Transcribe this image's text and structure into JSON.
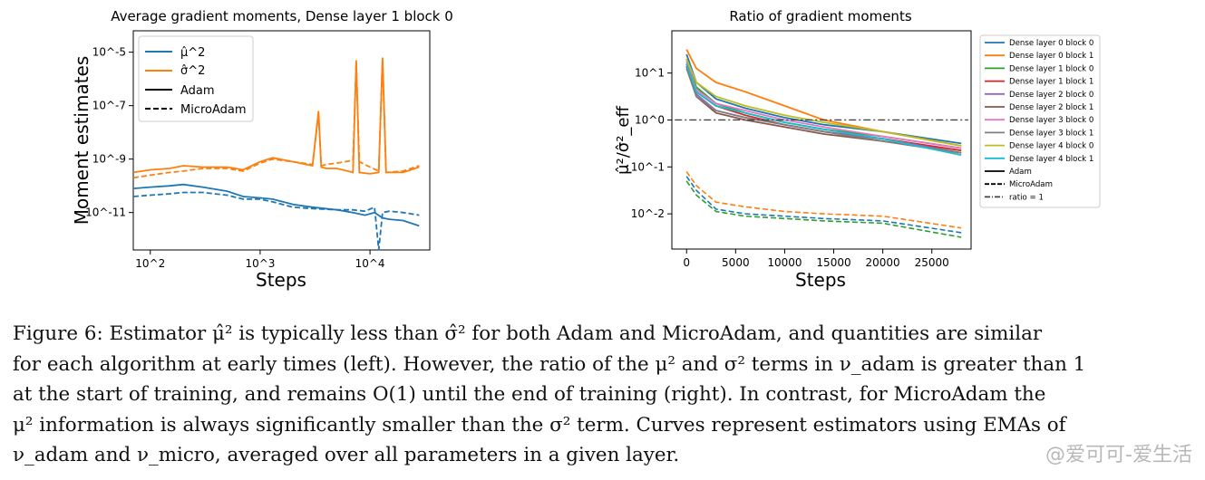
{
  "colors": {
    "c0": "#1f77b4",
    "c1": "#ff7f0e",
    "c2": "#2ca02c",
    "c3": "#d62728",
    "c4": "#9467bd",
    "c5": "#8c564b",
    "c6": "#e377c2",
    "c7": "#7f7f7f",
    "c8": "#bcbd22",
    "c9": "#17becf"
  },
  "chart_data": [
    {
      "type": "line",
      "title": "Average gradient moments, Dense layer 1 block 0",
      "xlabel": "Steps",
      "ylabel": "Moment estimates",
      "xscale": "log",
      "yscale": "log",
      "xlim": [
        70,
        35000
      ],
      "ylim_log10": [
        -12.4,
        -4.2
      ],
      "xticks": [
        "10^2",
        "10^3",
        "10^4"
      ],
      "yticks": [
        "10^-5",
        "10^-7",
        "10^-9",
        "10^-11"
      ],
      "legend": [
        "μ̂^2",
        "σ̂^2",
        "Adam",
        "MicroAdam"
      ],
      "legend_position": "upper left",
      "series": [
        {
          "name": "μ̂² Adam",
          "color": "c0",
          "style": "solid",
          "x": [
            70,
            100,
            150,
            200,
            300,
            500,
            700,
            1000,
            1300,
            2000,
            3000,
            5000,
            7000,
            9000,
            11000,
            13000,
            15000,
            20000,
            28000
          ],
          "y_log10": [
            -10.1,
            -10.05,
            -10.0,
            -9.95,
            -10.05,
            -10.2,
            -10.4,
            -10.45,
            -10.5,
            -10.7,
            -10.8,
            -10.9,
            -11.0,
            -11.1,
            -11.0,
            -11.2,
            -11.25,
            -11.3,
            -11.5
          ]
        },
        {
          "name": "μ̂² MicroAdam",
          "color": "c0",
          "style": "dashed",
          "x": [
            70,
            100,
            150,
            200,
            300,
            500,
            700,
            1000,
            1300,
            2000,
            3000,
            5000,
            7000,
            9000,
            11000,
            12000,
            13000,
            15000,
            20000,
            28000
          ],
          "y_log10": [
            -10.4,
            -10.35,
            -10.3,
            -10.25,
            -10.25,
            -10.35,
            -10.5,
            -10.5,
            -10.6,
            -10.8,
            -10.85,
            -10.9,
            -10.9,
            -10.95,
            -10.8,
            -12.4,
            -11.0,
            -10.95,
            -11.0,
            -11.1
          ]
        },
        {
          "name": "σ̂² Adam",
          "color": "c1",
          "style": "solid",
          "x": [
            70,
            100,
            150,
            200,
            300,
            500,
            700,
            1000,
            1300,
            2000,
            3000,
            3400,
            3600,
            4000,
            5000,
            7000,
            7500,
            8000,
            10000,
            12000,
            13000,
            14000,
            20000,
            28000
          ],
          "y_log10": [
            -9.5,
            -9.4,
            -9.35,
            -9.25,
            -9.3,
            -9.3,
            -9.4,
            -9.1,
            -8.95,
            -9.1,
            -9.25,
            -7.2,
            -9.3,
            -9.35,
            -9.35,
            -9.5,
            -5.3,
            -9.5,
            -9.55,
            -9.5,
            -5.2,
            -9.5,
            -9.5,
            -9.3
          ]
        },
        {
          "name": "σ̂² MicroAdam",
          "color": "c1",
          "style": "dashed",
          "x": [
            70,
            100,
            150,
            200,
            300,
            500,
            700,
            1000,
            1300,
            2000,
            3000,
            3400,
            3600,
            4000,
            5000,
            7000,
            7500,
            8000,
            10000,
            12000,
            13000,
            14000,
            20000,
            28000
          ],
          "y_log10": [
            -9.7,
            -9.6,
            -9.5,
            -9.45,
            -9.35,
            -9.35,
            -9.45,
            -9.15,
            -9.0,
            -9.1,
            -9.2,
            -7.3,
            -9.25,
            -9.2,
            -9.15,
            -9.05,
            -5.4,
            -9.1,
            -9.3,
            -9.45,
            -5.3,
            -9.5,
            -9.45,
            -9.25
          ]
        }
      ]
    },
    {
      "type": "line",
      "title": "Ratio of gradient moments",
      "xlabel": "Steps",
      "ylabel": "μ̂²/σ̂²_eff",
      "yscale": "log",
      "xlim": [
        -1500,
        29000
      ],
      "ylim_log10": [
        -2.75,
        1.9
      ],
      "xticks": [
        0,
        5000,
        10000,
        15000,
        20000,
        25000
      ],
      "yticks": [
        "10^1",
        "10^0",
        "10^-1",
        "10^-2"
      ],
      "reference_line": {
        "label": "ratio = 1",
        "y": 1
      },
      "legend": [
        "Dense layer 0 block 0",
        "Dense layer 0 block 1",
        "Dense layer 1 block 0",
        "Dense layer 1 block 1",
        "Dense layer 2 block 0",
        "Dense layer 2 block 1",
        "Dense layer 3 block 0",
        "Dense layer 3 block 1",
        "Dense layer 4 block 0",
        "Dense layer 4 block 1",
        "Adam",
        "MicroAdam",
        "ratio = 1"
      ],
      "legend_position": "outside right",
      "adam_series": [
        {
          "name": "Dense layer 0 block 0",
          "x": [
            0,
            1000,
            3000,
            6000,
            10000,
            14000,
            20000,
            28000
          ],
          "y_log10": [
            1.4,
            0.8,
            0.45,
            0.25,
            0.05,
            -0.1,
            -0.25,
            -0.5
          ]
        },
        {
          "name": "Dense layer 0 block 1",
          "x": [
            0,
            1000,
            3000,
            6000,
            10000,
            14000,
            20000,
            28000
          ],
          "y_log10": [
            1.5,
            1.1,
            0.8,
            0.6,
            0.3,
            0.0,
            -0.25,
            -0.55
          ]
        },
        {
          "name": "Dense layer 1 block 0",
          "x": [
            0,
            1000,
            3000,
            6000,
            10000,
            14000,
            20000,
            28000
          ],
          "y_log10": [
            1.3,
            0.7,
            0.35,
            0.15,
            -0.05,
            -0.2,
            -0.35,
            -0.6
          ]
        },
        {
          "name": "Dense layer 1 block 1",
          "x": [
            0,
            1000,
            3000,
            6000,
            10000,
            14000,
            20000,
            28000
          ],
          "y_log10": [
            1.2,
            0.6,
            0.3,
            0.1,
            -0.1,
            -0.25,
            -0.4,
            -0.65
          ]
        },
        {
          "name": "Dense layer 2 block 0",
          "x": [
            0,
            1000,
            3000,
            6000,
            10000,
            14000,
            20000,
            28000
          ],
          "y_log10": [
            1.2,
            0.55,
            0.2,
            0.05,
            -0.1,
            -0.25,
            -0.4,
            -0.7
          ]
        },
        {
          "name": "Dense layer 2 block 1",
          "x": [
            0,
            1000,
            3000,
            6000,
            10000,
            14000,
            20000,
            28000
          ],
          "y_log10": [
            1.15,
            0.5,
            0.15,
            0.0,
            -0.15,
            -0.3,
            -0.45,
            -0.7
          ]
        },
        {
          "name": "Dense layer 3 block 0",
          "x": [
            0,
            1000,
            3000,
            6000,
            10000,
            14000,
            20000,
            28000
          ],
          "y_log10": [
            1.25,
            0.65,
            0.35,
            0.2,
            0.0,
            -0.15,
            -0.35,
            -0.6
          ]
        },
        {
          "name": "Dense layer 3 block 1",
          "x": [
            0,
            1000,
            3000,
            6000,
            10000,
            14000,
            20000,
            28000
          ],
          "y_log10": [
            1.1,
            0.5,
            0.2,
            0.05,
            -0.1,
            -0.25,
            -0.45,
            -0.7
          ]
        },
        {
          "name": "Dense layer 4 block 0",
          "x": [
            0,
            1000,
            3000,
            6000,
            10000,
            14000,
            20000,
            28000
          ],
          "y_log10": [
            1.3,
            0.8,
            0.5,
            0.3,
            0.1,
            -0.05,
            -0.25,
            -0.55
          ]
        },
        {
          "name": "Dense layer 4 block 1",
          "x": [
            0,
            1000,
            3000,
            6000,
            10000,
            14000,
            20000,
            28000
          ],
          "y_log10": [
            1.2,
            0.6,
            0.3,
            0.15,
            -0.05,
            -0.2,
            -0.4,
            -0.75
          ]
        }
      ],
      "microadam_series": [
        {
          "name": "Dense layer 0 block 0",
          "x": [
            0,
            1000,
            3000,
            6000,
            10000,
            14000,
            20000,
            28000
          ],
          "y_log10": [
            -1.2,
            -1.5,
            -1.9,
            -2.0,
            -2.05,
            -2.1,
            -2.15,
            -2.4
          ]
        },
        {
          "name": "Dense layer 0 block 1",
          "x": [
            0,
            1000,
            3000,
            6000,
            10000,
            14000,
            20000,
            28000
          ],
          "y_log10": [
            -1.1,
            -1.4,
            -1.75,
            -1.85,
            -1.95,
            -2.0,
            -2.05,
            -2.3
          ]
        },
        {
          "name": "Dense layer 1 block 0",
          "x": [
            0,
            1000,
            3000,
            6000,
            10000,
            14000,
            20000,
            28000
          ],
          "y_log10": [
            -1.3,
            -1.6,
            -1.95,
            -2.05,
            -2.1,
            -2.15,
            -2.2,
            -2.5
          ]
        }
      ]
    }
  ],
  "caption": {
    "line1": "Figure 6: Estimator μ̂² is typically less than σ̂² for both Adam and MicroAdam, and quantities are similar",
    "line2": "for each algorithm at early times (left). However, the ratio of the μ² and σ² terms in ν_adam is greater than 1",
    "line3": "at the start of training, and remains O(1) until the end of training (right). In contrast, for MicroAdam the",
    "line4": "μ² information is always significantly smaller than the σ² term. Curves represent estimators using EMAs of",
    "line5": "ν_adam and ν_micro, averaged over all parameters in a given layer."
  },
  "watermark": "@爱可可-爱生活"
}
